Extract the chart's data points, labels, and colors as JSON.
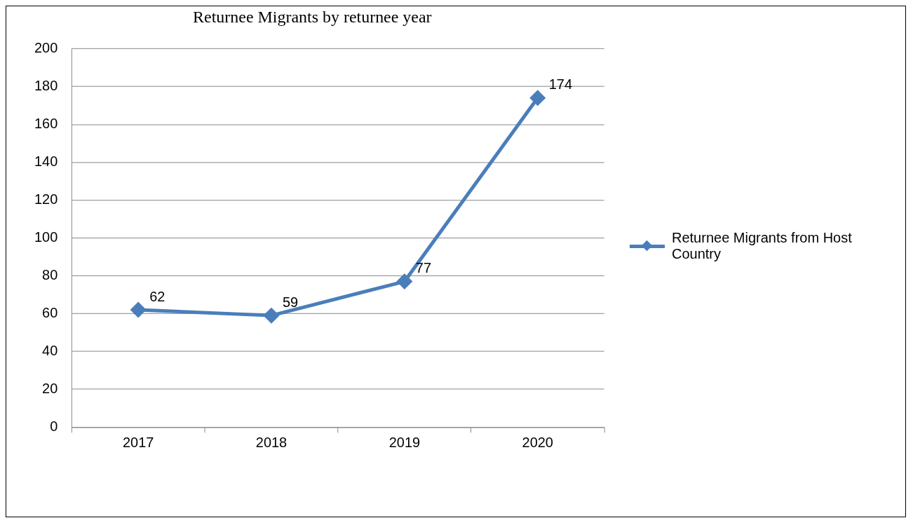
{
  "chart_data": {
    "type": "line",
    "title": "Returnee Migrants by returnee year",
    "categories": [
      "2017",
      "2018",
      "2019",
      "2020"
    ],
    "series": [
      {
        "name": "Returnee Migrants from Host Country",
        "color": "#4a7ebb",
        "values": [
          62,
          59,
          77,
          174
        ]
      }
    ],
    "ylim": [
      0,
      200
    ],
    "yticks": [
      0,
      20,
      40,
      60,
      80,
      100,
      120,
      140,
      160,
      180,
      200
    ],
    "grid": "y",
    "legend": "right",
    "marker": "diamond",
    "line_style": "solid",
    "data_labels": true
  }
}
